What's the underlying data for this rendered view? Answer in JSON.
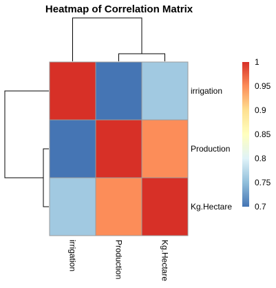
{
  "chart_data": {
    "type": "heatmap",
    "title": "Heatmap of Correlation Matrix",
    "columns": [
      "irrigation",
      "Production",
      "Kg.Hectare"
    ],
    "rows": [
      "irrigation",
      "Production",
      "Kg.Hectare"
    ],
    "values": [
      [
        1.0,
        0.7,
        0.76
      ],
      [
        0.7,
        1.0,
        0.95
      ],
      [
        0.76,
        0.95,
        1.0
      ]
    ],
    "legend": {
      "ticks": [
        1,
        0.95,
        0.9,
        0.85,
        0.8,
        0.75,
        0.7
      ],
      "range": [
        0.7,
        1
      ],
      "colors": [
        "#4575B4",
        "#91BFDB",
        "#E0F3F8",
        "#FFFFBF",
        "#FEE090",
        "#FC8D59",
        "#D73027"
      ],
      "position": "right"
    },
    "dendrograms": {
      "rows": true,
      "columns": true
    }
  }
}
